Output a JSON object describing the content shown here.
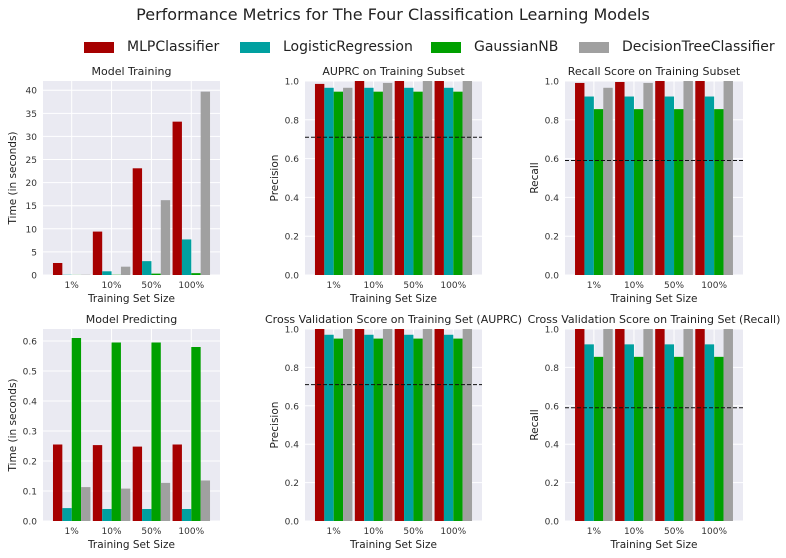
{
  "suptitle": "Performance Metrics for The Four Classification Learning Models",
  "legend": [
    {
      "name": "MLPClassifier",
      "color": "#a60000"
    },
    {
      "name": "LogisticRegression",
      "color": "#00a0a0"
    },
    {
      "name": "GaussianNB",
      "color": "#00a000"
    },
    {
      "name": "DecisionTreeClassifier",
      "color": "#a0a0a0"
    }
  ],
  "chart_data": [
    {
      "type": "bar",
      "title": "Model Training",
      "xlabel": "Training Set Size",
      "ylabel": "Time (in seconds)",
      "categories": [
        "1%",
        "10%",
        "50%",
        "100%"
      ],
      "ylim": [
        0,
        42
      ],
      "yticks": [
        0,
        5,
        10,
        15,
        20,
        25,
        30,
        35,
        40
      ],
      "series": [
        {
          "name": "MLPClassifier",
          "values": [
            2.6,
            9.4,
            23.1,
            33.2
          ]
        },
        {
          "name": "LogisticRegression",
          "values": [
            0.05,
            0.8,
            3.0,
            7.7
          ]
        },
        {
          "name": "GaussianNB",
          "values": [
            0.02,
            0.05,
            0.3,
            0.4
          ]
        },
        {
          "name": "DecisionTreeClassifier",
          "values": [
            0.06,
            1.8,
            16.2,
            39.7
          ]
        }
      ]
    },
    {
      "type": "bar",
      "title": "AUPRC on Training Subset",
      "xlabel": "Training Set Size",
      "ylabel": "Precision",
      "categories": [
        "1%",
        "10%",
        "50%",
        "100%"
      ],
      "ylim": [
        0,
        1.0
      ],
      "yticks": [
        0.0,
        0.2,
        0.4,
        0.6,
        0.8,
        1.0
      ],
      "reference_line": 0.71,
      "series": [
        {
          "name": "MLPClassifier",
          "values": [
            0.985,
            1.0,
            1.0,
            1.0
          ]
        },
        {
          "name": "LogisticRegression",
          "values": [
            0.965,
            0.965,
            0.965,
            0.965
          ]
        },
        {
          "name": "GaussianNB",
          "values": [
            0.945,
            0.945,
            0.945,
            0.945
          ]
        },
        {
          "name": "DecisionTreeClassifier",
          "values": [
            0.965,
            0.99,
            1.0,
            1.0
          ]
        }
      ]
    },
    {
      "type": "bar",
      "title": "Recall Score on Training Subset",
      "xlabel": "Training Set Size",
      "ylabel": "Recall",
      "categories": [
        "1%",
        "10%",
        "50%",
        "100%"
      ],
      "ylim": [
        0,
        1.0
      ],
      "yticks": [
        0.0,
        0.2,
        0.4,
        0.6,
        0.8,
        1.0
      ],
      "reference_line": 0.59,
      "series": [
        {
          "name": "MLPClassifier",
          "values": [
            0.99,
            0.995,
            1.0,
            1.0
          ]
        },
        {
          "name": "LogisticRegression",
          "values": [
            0.92,
            0.92,
            0.92,
            0.92
          ]
        },
        {
          "name": "GaussianNB",
          "values": [
            0.855,
            0.855,
            0.855,
            0.855
          ]
        },
        {
          "name": "DecisionTreeClassifier",
          "values": [
            0.965,
            0.99,
            1.0,
            1.0
          ]
        }
      ]
    },
    {
      "type": "bar",
      "title": "Model Predicting",
      "xlabel": "Training Set Size",
      "ylabel": "Time (in seconds)",
      "categories": [
        "1%",
        "10%",
        "50%",
        "100%"
      ],
      "ylim": [
        0,
        0.64
      ],
      "yticks": [
        0.0,
        0.1,
        0.2,
        0.3,
        0.4,
        0.5,
        0.6
      ],
      "series": [
        {
          "name": "MLPClassifier",
          "values": [
            0.255,
            0.253,
            0.248,
            0.255
          ]
        },
        {
          "name": "LogisticRegression",
          "values": [
            0.043,
            0.04,
            0.04,
            0.04
          ]
        },
        {
          "name": "GaussianNB",
          "values": [
            0.61,
            0.595,
            0.595,
            0.58
          ]
        },
        {
          "name": "DecisionTreeClassifier",
          "values": [
            0.113,
            0.108,
            0.127,
            0.135
          ]
        }
      ]
    },
    {
      "type": "bar",
      "title": "Cross Validation Score on Training Set (AUPRC)",
      "xlabel": "Training Set Size",
      "ylabel": "Precision",
      "categories": [
        "1%",
        "10%",
        "50%",
        "100%"
      ],
      "ylim": [
        0,
        1.0
      ],
      "yticks": [
        0.0,
        0.2,
        0.4,
        0.6,
        0.8,
        1.0
      ],
      "reference_line": 0.71,
      "series": [
        {
          "name": "MLPClassifier",
          "values": [
            1.0,
            1.0,
            1.0,
            1.0
          ]
        },
        {
          "name": "LogisticRegression",
          "values": [
            0.97,
            0.97,
            0.97,
            0.97
          ]
        },
        {
          "name": "GaussianNB",
          "values": [
            0.95,
            0.95,
            0.95,
            0.95
          ]
        },
        {
          "name": "DecisionTreeClassifier",
          "values": [
            1.0,
            1.0,
            1.0,
            1.0
          ]
        }
      ]
    },
    {
      "type": "bar",
      "title": "Cross Validation Score on Training Set (Recall)",
      "xlabel": "Training Set Size",
      "ylabel": "Recall",
      "categories": [
        "1%",
        "10%",
        "50%",
        "100%"
      ],
      "ylim": [
        0,
        1.0
      ],
      "yticks": [
        0.0,
        0.2,
        0.4,
        0.6,
        0.8,
        1.0
      ],
      "reference_line": 0.59,
      "series": [
        {
          "name": "MLPClassifier",
          "values": [
            1.0,
            1.0,
            1.0,
            1.0
          ]
        },
        {
          "name": "LogisticRegression",
          "values": [
            0.92,
            0.92,
            0.92,
            0.92
          ]
        },
        {
          "name": "GaussianNB",
          "values": [
            0.855,
            0.855,
            0.855,
            0.855
          ]
        },
        {
          "name": "DecisionTreeClassifier",
          "values": [
            1.0,
            1.0,
            1.0,
            1.0
          ]
        }
      ]
    }
  ]
}
